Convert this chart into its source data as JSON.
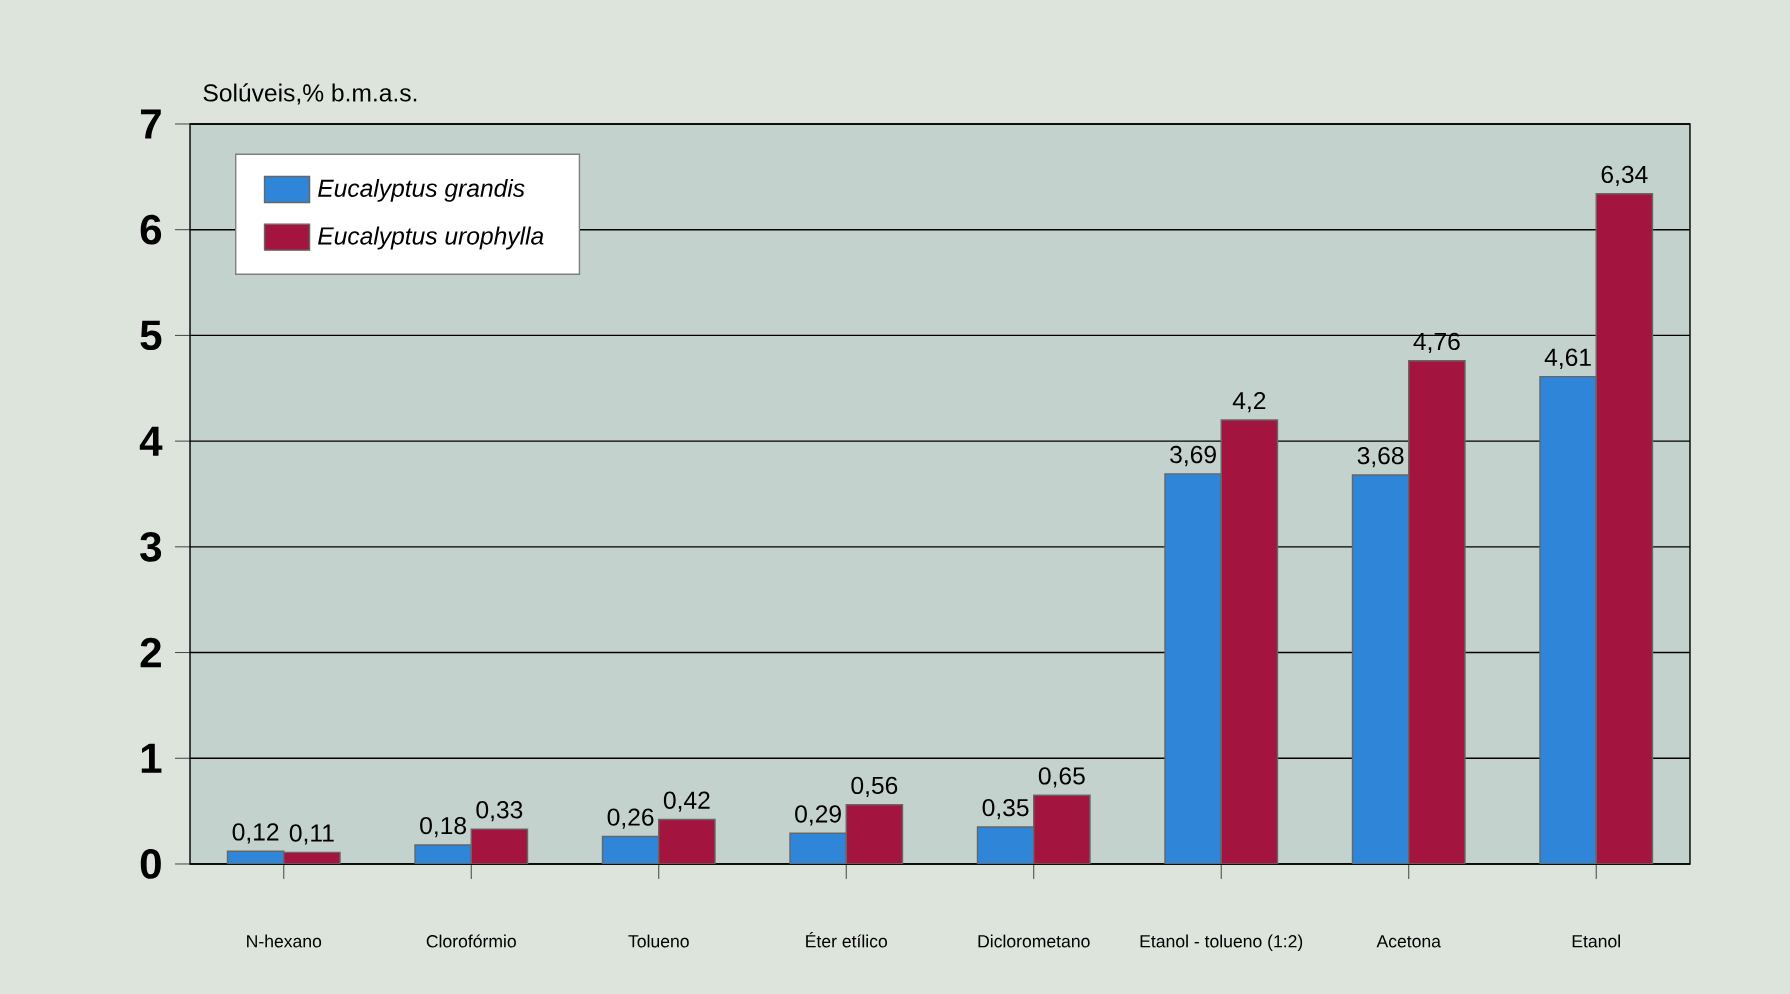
{
  "chart_data": {
    "type": "bar",
    "ylabel": "Solúveis,% b.m.a.s.",
    "categories": [
      "N-hexano",
      "Clorofórmio",
      "Tolueno",
      "Éter etílico",
      "Diclorometano",
      "Etanol - tolueno (1:2)",
      "Acetona",
      "Etanol"
    ],
    "series": [
      {
        "name": "Eucalyptus grandis",
        "color": "#2f86d8",
        "values": [
          0.12,
          0.18,
          0.26,
          0.29,
          0.35,
          3.69,
          3.68,
          4.61
        ],
        "value_labels": [
          "0,12",
          "0,18",
          "0,26",
          "0,29",
          "0,35",
          "3,69",
          "3,68",
          "4,61"
        ]
      },
      {
        "name": "Eucalyptus urophylla",
        "color": "#a3153f",
        "values": [
          0.11,
          0.33,
          0.42,
          0.56,
          0.65,
          4.2,
          4.76,
          6.34
        ],
        "value_labels": [
          "0,11",
          "0,33",
          "0,42",
          "0,56",
          "0,65",
          "4,2",
          "4,76",
          "6,34"
        ]
      }
    ],
    "ylim": [
      0,
      7
    ],
    "yticks": [
      0,
      1,
      2,
      3,
      4,
      5,
      6,
      7
    ],
    "grid": "y",
    "legend": "top left"
  }
}
